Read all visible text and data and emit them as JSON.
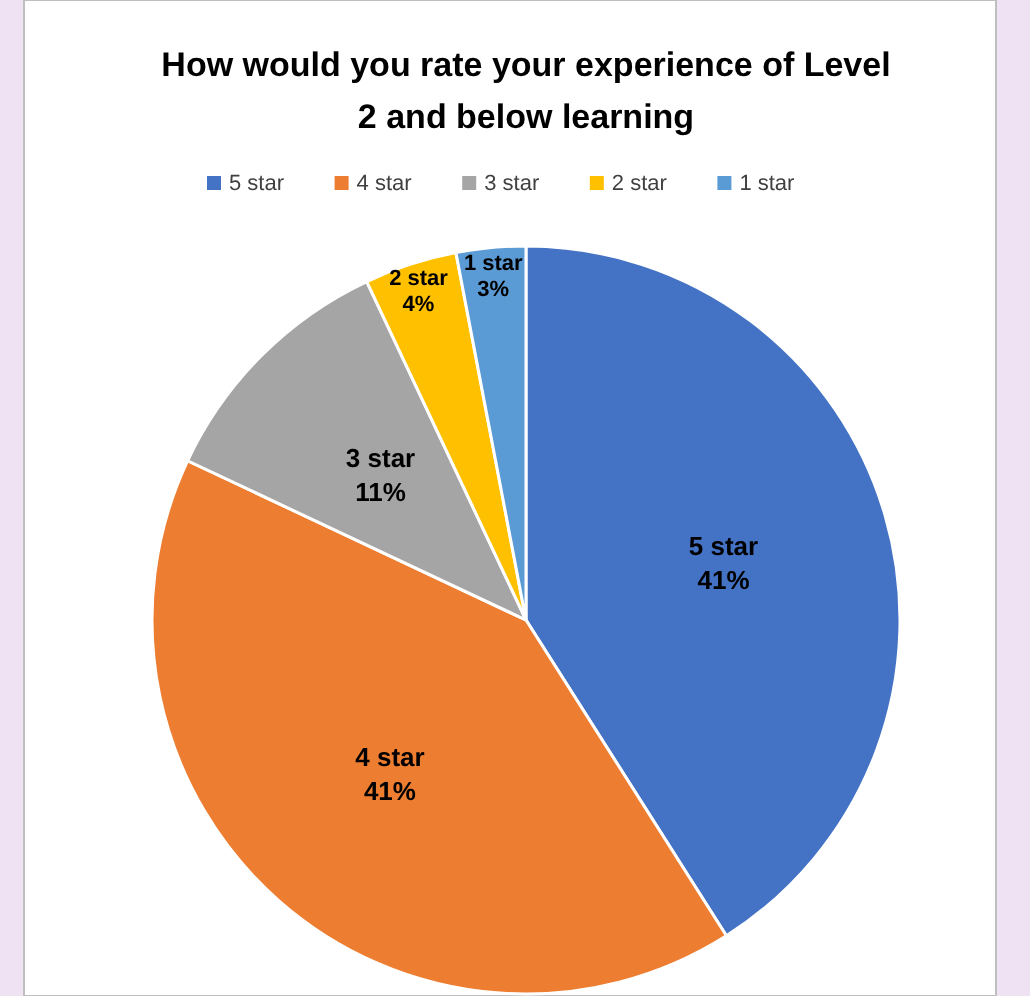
{
  "chart_data": {
    "type": "pie",
    "title": "How would you rate your experience of Level 2 and below learning",
    "categories": [
      "5 star",
      "4 star",
      "3 star",
      "2 star",
      "1 star"
    ],
    "values": [
      41,
      41,
      11,
      4,
      3
    ],
    "colors": [
      "#4472c4",
      "#ed7d31",
      "#a5a5a5",
      "#ffc000",
      "#5b9bd5"
    ],
    "value_labels": [
      "41%",
      "41%",
      "11%",
      "4%",
      "3%"
    ],
    "legend": "top"
  }
}
